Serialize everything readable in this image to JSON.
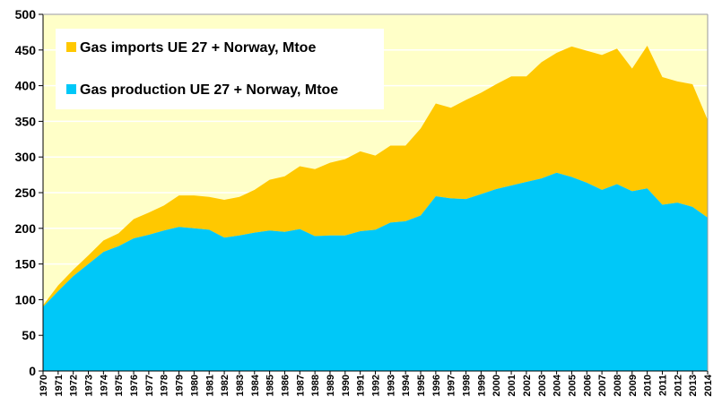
{
  "chart_data": {
    "type": "area",
    "stacked": true,
    "x": [
      "1970",
      "1971",
      "1972",
      "1973",
      "1974",
      "1975",
      "1976",
      "1977",
      "1978",
      "1979",
      "1980",
      "1981",
      "1982",
      "1983",
      "1984",
      "1985",
      "1986",
      "1987",
      "1988",
      "1989",
      "1990",
      "1991",
      "1992",
      "1993",
      "1994",
      "1995",
      "1996",
      "1997",
      "1998",
      "1999",
      "2000",
      "2001",
      "2002",
      "2003",
      "2004",
      "2005",
      "2006",
      "2007",
      "2008",
      "2009",
      "2010",
      "2011",
      "2012",
      "2013",
      "2014"
    ],
    "series": [
      {
        "name": "Gas production UE 27 + Norway, Mtoe",
        "color": "#00c8f8",
        "values": [
          90,
          112,
          133,
          150,
          167,
          175,
          186,
          191,
          197,
          202,
          200,
          198,
          187,
          190,
          194,
          197,
          195,
          199,
          189,
          190,
          190,
          196,
          198,
          208,
          210,
          218,
          245,
          242,
          241,
          248,
          255,
          260,
          265,
          270,
          278,
          272,
          264,
          254,
          262,
          252,
          256,
          233,
          236,
          230,
          215
        ]
      },
      {
        "name": "Gas imports UE 27 + Norway, Mtoe",
        "color": "#ffc800",
        "totals": [
          92,
          120,
          142,
          162,
          183,
          193,
          213,
          222,
          232,
          246,
          246,
          244,
          240,
          244,
          254,
          268,
          273,
          287,
          283,
          292,
          297,
          308,
          302,
          316,
          316,
          340,
          375,
          369,
          380,
          390,
          402,
          413,
          413,
          433,
          446,
          455,
          449,
          443,
          452,
          424,
          456,
          412,
          406,
          402,
          352
        ]
      }
    ],
    "ylim": [
      0,
      500
    ],
    "yticks": [
      0,
      50,
      100,
      150,
      200,
      250,
      300,
      350,
      400,
      450,
      500
    ],
    "grid": true,
    "background": "#ffffc8",
    "gridline_color": "#ffffff",
    "legend": {
      "position": "top-left",
      "entries": [
        {
          "label": "Gas imports UE 27 + Norway, Mtoe",
          "color": "#ffc800"
        },
        {
          "label": "Gas production UE 27 + Norway, Mtoe",
          "color": "#00c8f8"
        }
      ]
    }
  }
}
